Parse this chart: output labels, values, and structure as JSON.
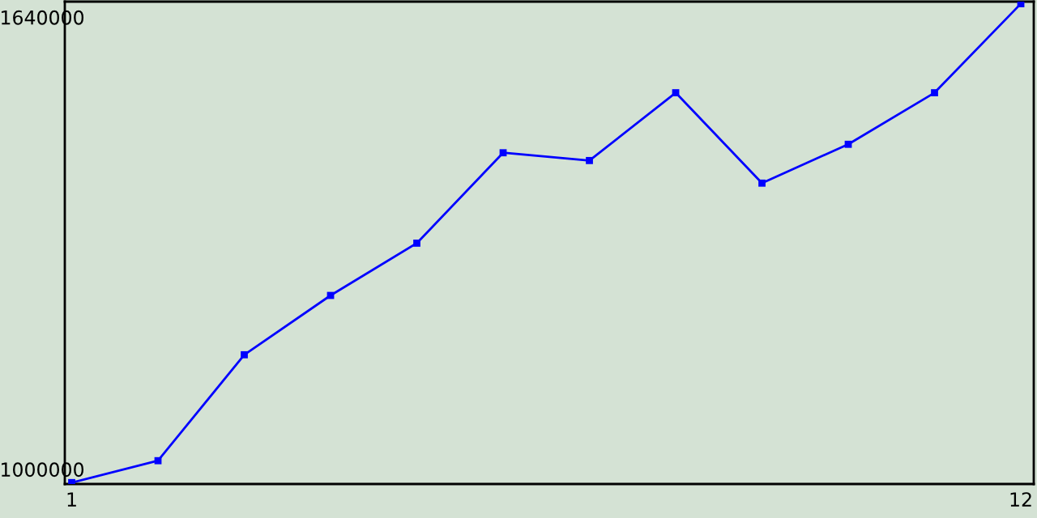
{
  "chart_data": {
    "type": "line",
    "x": [
      1,
      2,
      3,
      4,
      5,
      6,
      7,
      8,
      9,
      10,
      11,
      12
    ],
    "series": [
      {
        "color": "#0000ff",
        "values": [
          984000,
          1015000,
          1165000,
          1249000,
          1323000,
          1451000,
          1440000,
          1536000,
          1408000,
          1463000,
          1536000,
          1662000
        ]
      }
    ],
    "xlim": [
      0.92,
      12.15
    ],
    "xticks": [
      1,
      12
    ],
    "ylim": [
      982000,
      1665000
    ],
    "yticks": [
      1000000,
      1640000
    ],
    "marker": "square",
    "line_style": "solid"
  }
}
